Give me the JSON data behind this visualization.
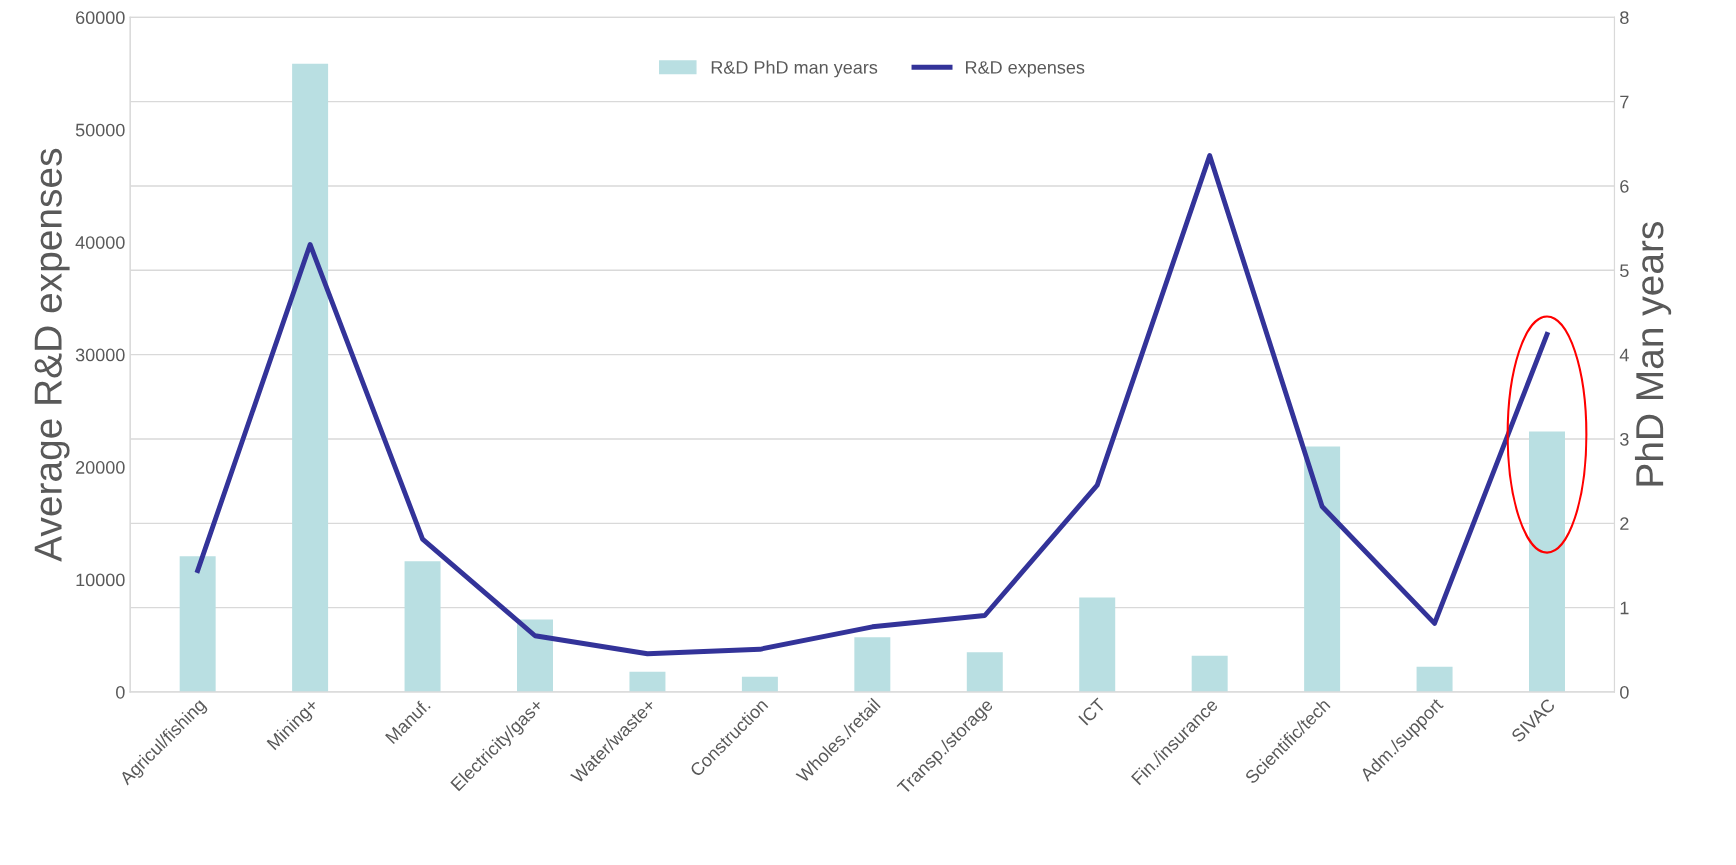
{
  "chart_data": {
    "type": "bar",
    "ylabel": "Average R&D expenses",
    "y2label": "PhD Man years",
    "categories": [
      "Agricul/fishing",
      "Mining+",
      "Manuf.",
      "Electricity/gas+",
      "Water/waste+",
      "Construction",
      "Wholes./retail",
      "Transp./storage",
      "ICT",
      "Fin./insurance",
      "Scientific/tech",
      "Adm./support",
      "SIVAC"
    ],
    "series": [
      {
        "name": "R&D PhD man years",
        "axis": "y2",
        "color": "#b9dfe2",
        "values": [
          1.61,
          7.45,
          1.55,
          0.86,
          0.24,
          0.18,
          0.65,
          0.47,
          1.12,
          0.43,
          2.91,
          0.3,
          3.09
        ]
      },
      {
        "name": "R&D expenses",
        "type": "line",
        "color": "#333399",
        "values": [
          10800,
          39800,
          13600,
          5000,
          3400,
          3800,
          5800,
          6800,
          18400,
          47700,
          16500,
          6100,
          31800
        ]
      }
    ],
    "ylim": [
      0,
      60000
    ],
    "yticks": [
      0,
      10000,
      20000,
      30000,
      40000,
      50000,
      60000
    ],
    "y2lim": [
      0,
      8
    ],
    "y2ticks": [
      0,
      1,
      2,
      3,
      4,
      5,
      6,
      7,
      8
    ],
    "grid": "y",
    "legend": "top",
    "marker": "none",
    "line_style": "solid"
  }
}
